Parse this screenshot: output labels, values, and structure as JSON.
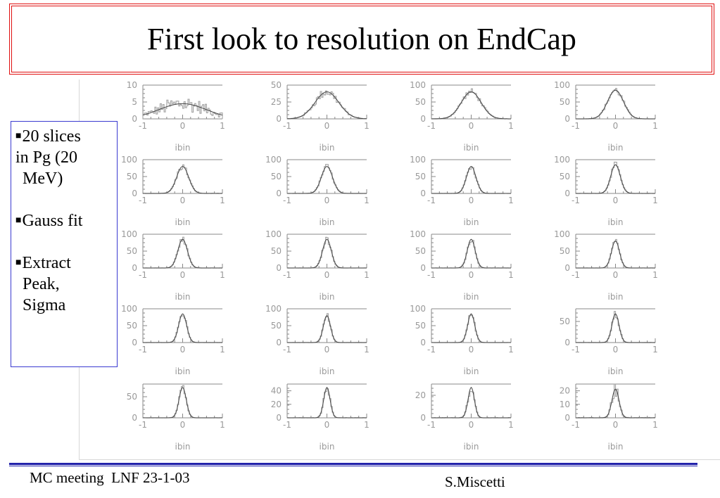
{
  "slide": {
    "title": "First look to resolution on EndCap",
    "bullets": [
      {
        "lines": [
          "20 slices",
          "in Pg (20",
          " MeV)"
        ]
      },
      {
        "lines": [
          "Gauss fit"
        ]
      },
      {
        "lines": [
          "Extract",
          " Peak,",
          " Sigma"
        ]
      }
    ],
    "footer_left": "MC meeting  LNF 23-1-03",
    "footer_right": "S.Miscetti"
  },
  "chart_data": {
    "type": "histogram-grid",
    "rows": 5,
    "cols": 4,
    "xlabel": "ibin",
    "x_range": [
      -1,
      1
    ],
    "x_ticks": [
      "-1",
      "0",
      "1"
    ],
    "fit": "gaussian",
    "panels": [
      {
        "y_ticks": [
          "10",
          "5",
          "0"
        ],
        "ymax": 10,
        "sigma": 0.6,
        "height": 0.45,
        "noise": 0.55
      },
      {
        "y_ticks": [
          "50",
          "25",
          "0"
        ],
        "ymax": 50,
        "sigma": 0.3,
        "height": 0.8,
        "noise": 0.18
      },
      {
        "y_ticks": [
          "100",
          "50",
          "0"
        ],
        "ymax": 100,
        "sigma": 0.25,
        "height": 0.8,
        "noise": 0.12
      },
      {
        "y_ticks": [
          "100",
          "50",
          "0"
        ],
        "ymax": 100,
        "sigma": 0.2,
        "height": 0.85,
        "noise": 0.12
      },
      {
        "y_ticks": [
          "100",
          "50",
          "0"
        ],
        "ymax": 100,
        "sigma": 0.15,
        "height": 0.8,
        "noise": 0.12
      },
      {
        "y_ticks": [
          "100",
          "50",
          "0"
        ],
        "ymax": 100,
        "sigma": 0.14,
        "height": 0.8,
        "noise": 0.1
      },
      {
        "y_ticks": [
          "100",
          "50",
          "0"
        ],
        "ymax": 100,
        "sigma": 0.12,
        "height": 0.8,
        "noise": 0.1
      },
      {
        "y_ticks": [
          "100",
          "50",
          "0"
        ],
        "ymax": 100,
        "sigma": 0.12,
        "height": 0.85,
        "noise": 0.1
      },
      {
        "y_ticks": [
          "100",
          "50",
          "0"
        ],
        "ymax": 100,
        "sigma": 0.12,
        "height": 0.85,
        "noise": 0.1
      },
      {
        "y_ticks": [
          "100",
          "50",
          "0"
        ],
        "ymax": 100,
        "sigma": 0.11,
        "height": 0.85,
        "noise": 0.1
      },
      {
        "y_ticks": [
          "100",
          "50",
          "0"
        ],
        "ymax": 100,
        "sigma": 0.1,
        "height": 0.85,
        "noise": 0.1
      },
      {
        "y_ticks": [
          "100",
          "50",
          "0"
        ],
        "ymax": 100,
        "sigma": 0.1,
        "height": 0.8,
        "noise": 0.1
      },
      {
        "y_ticks": [
          "100",
          "50",
          "0"
        ],
        "ymax": 100,
        "sigma": 0.1,
        "height": 0.85,
        "noise": 0.1
      },
      {
        "y_ticks": [
          "100",
          "50",
          "0"
        ],
        "ymax": 100,
        "sigma": 0.09,
        "height": 0.8,
        "noise": 0.1
      },
      {
        "y_ticks": [
          "100",
          "50",
          "0"
        ],
        "ymax": 100,
        "sigma": 0.09,
        "height": 0.85,
        "noise": 0.1
      },
      {
        "y_ticks": [
          "50",
          "0"
        ],
        "ymax": 80,
        "sigma": 0.09,
        "height": 0.85,
        "noise": 0.12
      },
      {
        "y_ticks": [
          "50",
          "0"
        ],
        "ymax": 80,
        "sigma": 0.09,
        "height": 0.9,
        "noise": 0.12
      },
      {
        "y_ticks": [
          "40",
          "20",
          "0"
        ],
        "ymax": 50,
        "sigma": 0.08,
        "height": 0.9,
        "noise": 0.14
      },
      {
        "y_ticks": [
          "20",
          "0"
        ],
        "ymax": 30,
        "sigma": 0.08,
        "height": 0.9,
        "noise": 0.2
      },
      {
        "y_ticks": [
          "20",
          "10",
          "0"
        ],
        "ymax": 25,
        "sigma": 0.09,
        "height": 0.85,
        "noise": 0.25
      }
    ]
  }
}
